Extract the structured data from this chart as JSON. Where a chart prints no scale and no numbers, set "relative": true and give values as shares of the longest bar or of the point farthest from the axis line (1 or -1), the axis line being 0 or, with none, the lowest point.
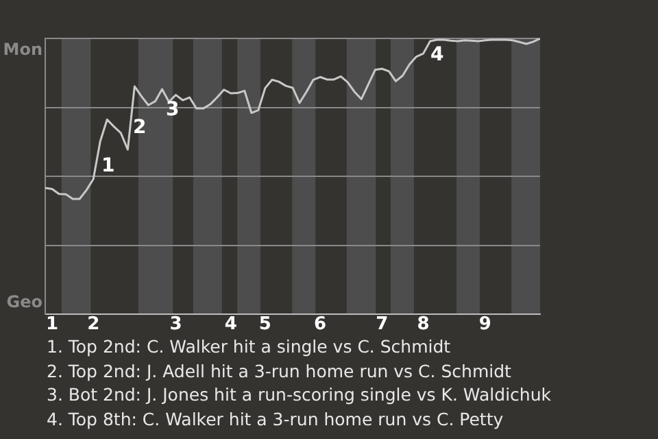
{
  "chart_data": {
    "type": "line",
    "relative": true,
    "categories": [
      null,
      "1",
      null,
      null,
      null,
      null,
      null,
      "2",
      null,
      null,
      null,
      null,
      null,
      null,
      null,
      null,
      null,
      null,
      null,
      "3",
      null,
      null,
      null,
      null,
      null,
      null,
      null,
      "4",
      null,
      null,
      null,
      null,
      "5",
      null,
      null,
      null,
      null,
      null,
      null,
      null,
      "6",
      null,
      null,
      null,
      null,
      null,
      null,
      null,
      null,
      "7",
      null,
      null,
      null,
      null,
      null,
      "8",
      null,
      null,
      null,
      null,
      null,
      null,
      null,
      null,
      "9",
      null,
      null,
      null,
      null,
      null,
      null,
      null,
      null
    ],
    "series": [
      {
        "color": "#c8c8c8",
        "values": [
          0.458,
          0.454,
          0.436,
          0.435,
          0.418,
          0.418,
          0.45,
          0.49,
          0.627,
          0.706,
          0.68,
          0.657,
          0.597,
          0.826,
          0.79,
          0.758,
          0.772,
          0.816,
          0.77,
          0.795,
          0.776,
          0.786,
          0.746,
          0.746,
          0.761,
          0.786,
          0.814,
          0.801,
          0.802,
          0.81,
          0.73,
          0.74,
          0.82,
          0.85,
          0.843,
          0.828,
          0.821,
          0.766,
          0.806,
          0.85,
          0.86,
          0.851,
          0.851,
          0.862,
          0.841,
          0.806,
          0.78,
          0.833,
          0.886,
          0.89,
          0.881,
          0.845,
          0.865,
          0.906,
          0.934,
          0.945,
          0.99,
          0.995,
          0.995,
          0.992,
          0.99,
          0.993,
          0.992,
          0.99,
          0.993,
          0.995,
          0.995,
          0.995,
          0.993,
          0.987,
          0.98,
          0.988,
          1
        ]
      }
    ],
    "grid": "y",
    "legend": false,
    "marker": "none",
    "annotations": [
      "Mon",
      "Geo",
      "1",
      "2",
      "3",
      "4",
      "1. Top 2nd: C. Walker hit a single vs C. Schmidt",
      "2. Top 2nd: J. Adell hit a 3-run home run vs C. Schmidt",
      "3. Bot 2nd: J. Jones hit a run-scoring single vs K. Waldichuk",
      "4. Top 8th: C. Walker hit a 3-run home run vs C. Petty"
    ]
  }
}
